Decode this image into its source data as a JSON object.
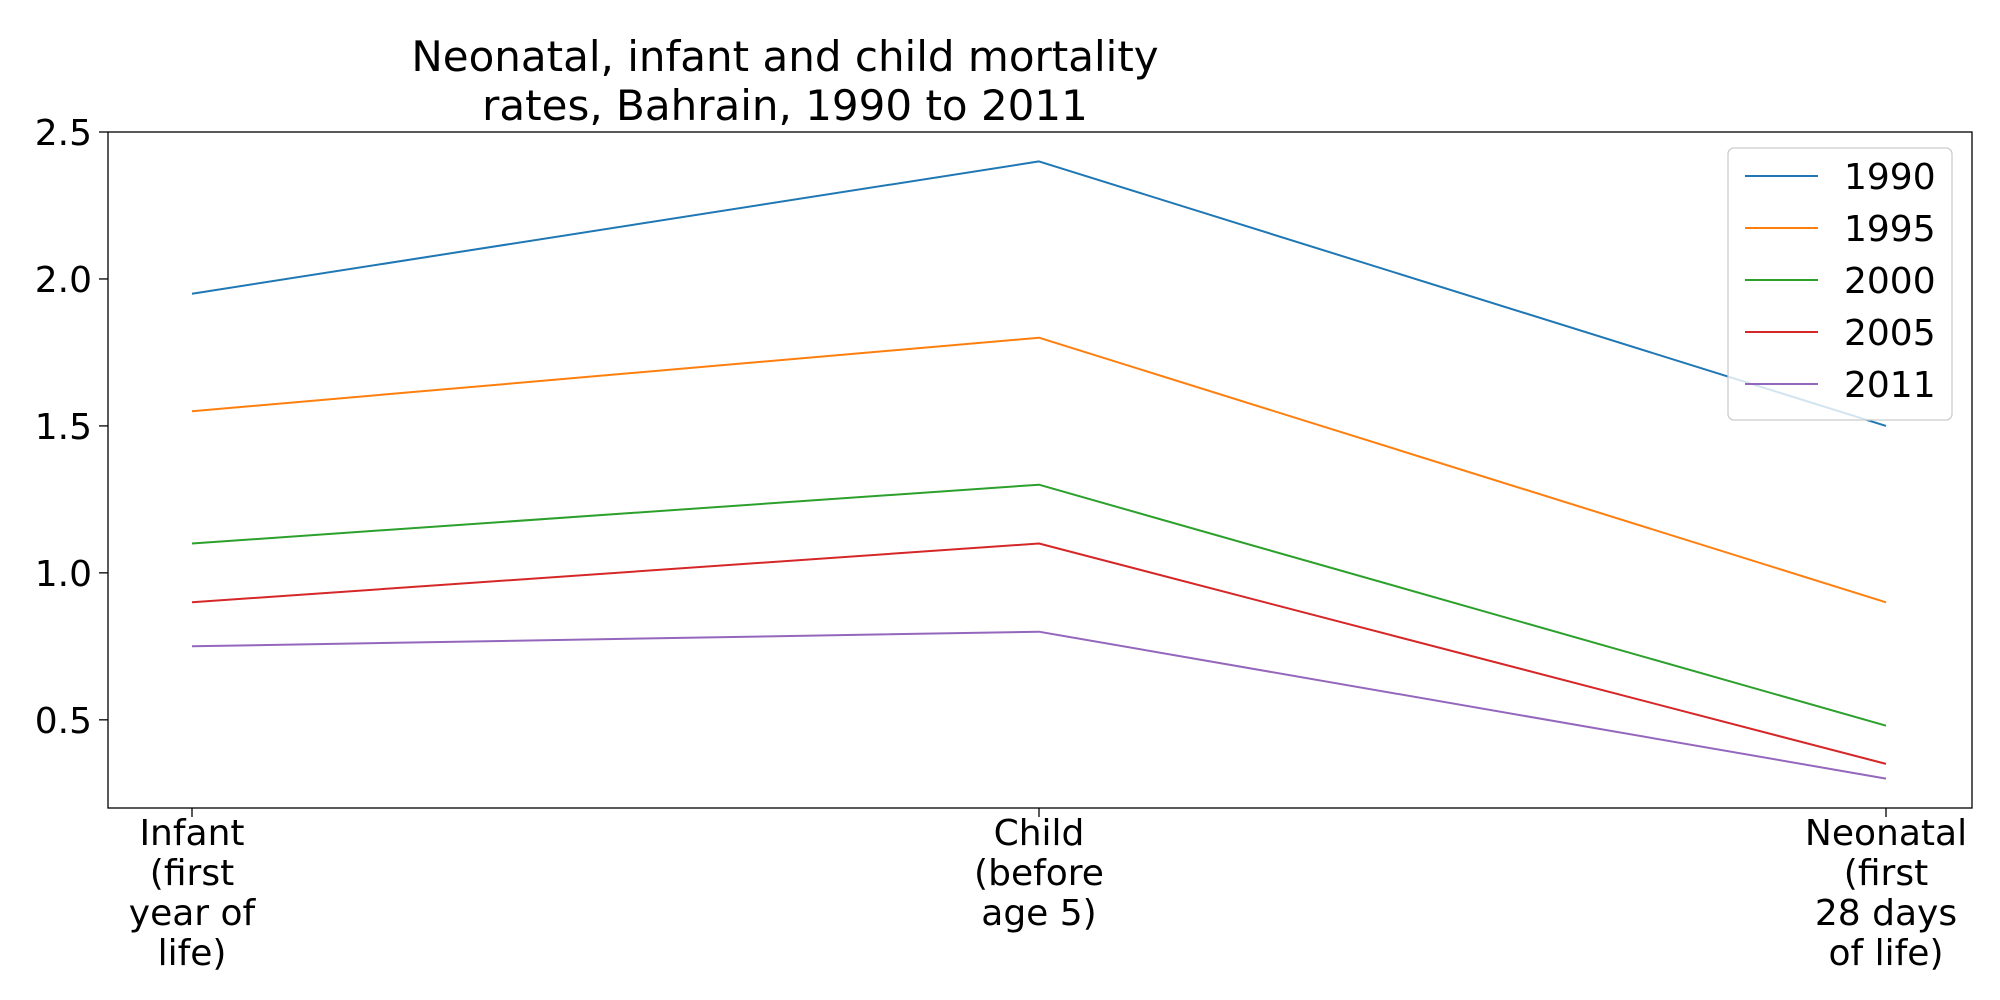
{
  "chart_data": {
    "type": "line",
    "title_lines": [
      "Neonatal, infant and child mortality",
      "rates, Bahrain, 1990 to 2011"
    ],
    "categories": [
      [
        "Infant",
        "(first",
        "year of",
        "life)"
      ],
      [
        "Child",
        "(before",
        "age 5)"
      ],
      [
        "Neonatal",
        "(first",
        "28 days",
        "of life)"
      ]
    ],
    "yticks": [
      "0.5",
      "1.0",
      "1.5",
      "2.0",
      "2.5"
    ],
    "ylim": [
      0.2,
      2.5
    ],
    "grid": false,
    "legend_position": "top-right",
    "series": [
      {
        "name": "1990",
        "color": "#1f77b4",
        "values": [
          1.95,
          2.4,
          1.5
        ]
      },
      {
        "name": "1995",
        "color": "#ff7f0e",
        "values": [
          1.55,
          1.8,
          0.9
        ]
      },
      {
        "name": "2000",
        "color": "#2ca02c",
        "values": [
          1.1,
          1.3,
          0.48
        ]
      },
      {
        "name": "2005",
        "color": "#d62728",
        "values": [
          0.9,
          1.1,
          0.35
        ]
      },
      {
        "name": "2011",
        "color": "#9467bd",
        "values": [
          0.75,
          0.8,
          0.3
        ]
      }
    ]
  }
}
